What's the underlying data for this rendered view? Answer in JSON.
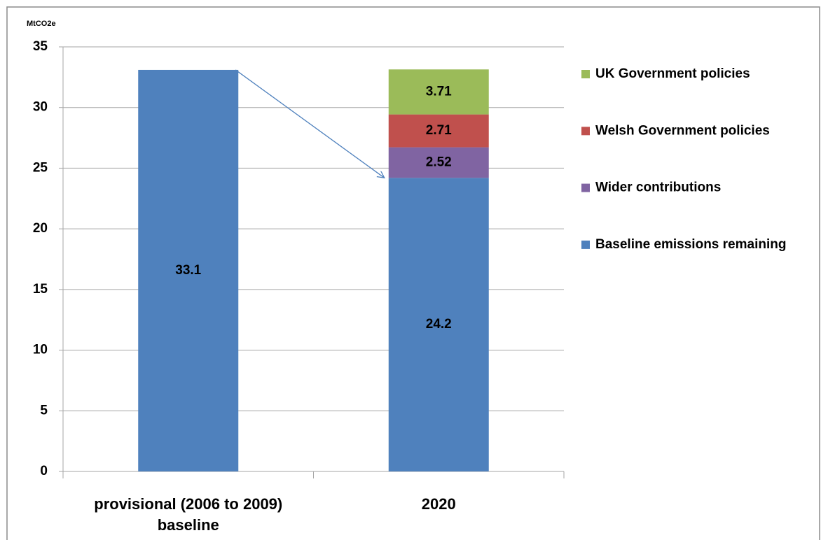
{
  "chart_data": {
    "type": "stacked_bar",
    "y_axis_label": "MtCO2e",
    "categories": [
      "provisional (2006 to 2009) baseline",
      "2020"
    ],
    "series": [
      {
        "name": "Baseline emissions remaining",
        "color": "#4f81bd",
        "values": [
          33.1,
          24.2
        ]
      },
      {
        "name": "Wider contributions",
        "color": "#8064a2",
        "values": [
          null,
          2.52
        ]
      },
      {
        "name": "Welsh Government policies",
        "color": "#c0504d",
        "values": [
          null,
          2.71
        ]
      },
      {
        "name": "UK Government policies",
        "color": "#9bbb59",
        "values": [
          null,
          3.71
        ]
      }
    ],
    "ylim": [
      0,
      35
    ],
    "yticks": [
      0,
      5,
      10,
      15,
      20,
      25,
      30,
      35
    ],
    "grid": true,
    "legend": "right"
  }
}
